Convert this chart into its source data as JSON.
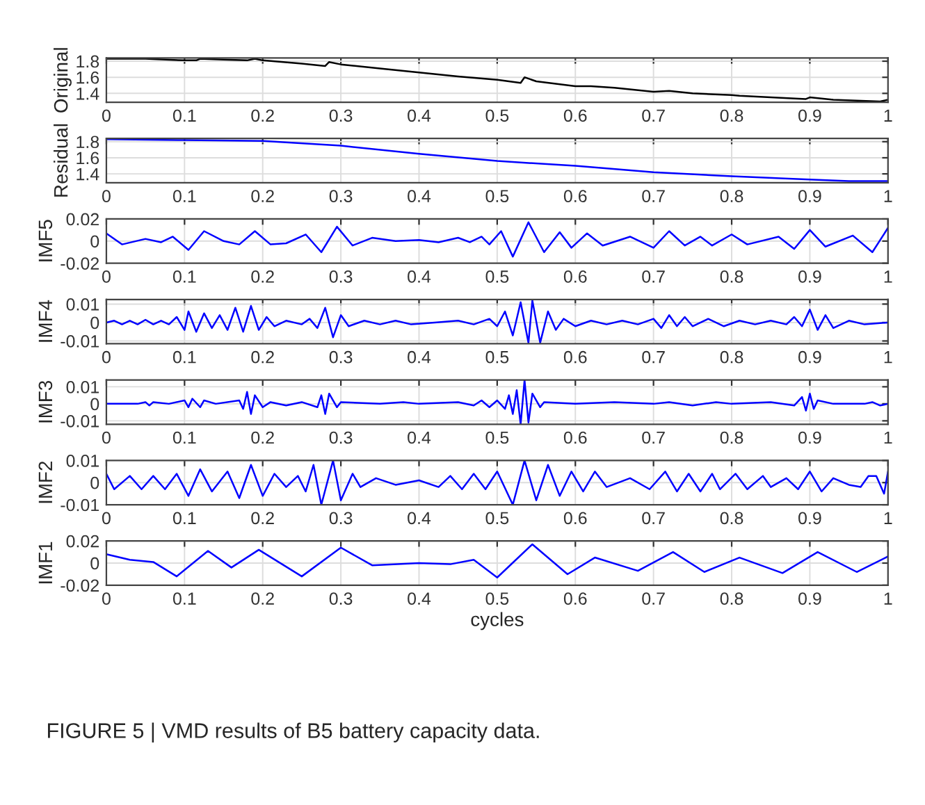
{
  "chart_data": [
    {
      "type": "line",
      "ylabel": "Original",
      "xlim": [
        0,
        1
      ],
      "xticks": [
        0,
        0.1,
        0.2,
        0.3,
        0.4,
        0.5,
        0.6,
        0.7,
        0.8,
        0.9,
        1
      ],
      "ylim": [
        1.29,
        1.84
      ],
      "yticks": [
        1.4,
        1.6,
        1.8
      ],
      "grid": true,
      "series": [
        {
          "color": "#000000",
          "x": [
            0,
            0.05,
            0.1,
            0.115,
            0.12,
            0.15,
            0.18,
            0.19,
            0.2,
            0.25,
            0.28,
            0.285,
            0.3,
            0.35,
            0.4,
            0.45,
            0.5,
            0.53,
            0.535,
            0.55,
            0.6,
            0.62,
            0.65,
            0.7,
            0.72,
            0.75,
            0.8,
            0.81,
            0.85,
            0.895,
            0.9,
            0.93,
            0.99,
            1.0
          ],
          "values": [
            1.83,
            1.83,
            1.81,
            1.81,
            1.83,
            1.82,
            1.81,
            1.83,
            1.81,
            1.77,
            1.74,
            1.79,
            1.76,
            1.71,
            1.66,
            1.61,
            1.57,
            1.53,
            1.6,
            1.55,
            1.49,
            1.49,
            1.47,
            1.42,
            1.43,
            1.4,
            1.38,
            1.37,
            1.35,
            1.33,
            1.35,
            1.32,
            1.3,
            1.32
          ]
        }
      ]
    },
    {
      "type": "line",
      "ylabel": "Residual",
      "xlim": [
        0,
        1
      ],
      "xticks": [
        0,
        0.1,
        0.2,
        0.3,
        0.4,
        0.5,
        0.6,
        0.7,
        0.8,
        0.9,
        1
      ],
      "ylim": [
        1.29,
        1.84
      ],
      "yticks": [
        1.4,
        1.6,
        1.8
      ],
      "grid": true,
      "series": [
        {
          "color": "#0000ff",
          "x": [
            0,
            0.1,
            0.2,
            0.3,
            0.4,
            0.5,
            0.6,
            0.7,
            0.8,
            0.9,
            0.95,
            1.0
          ],
          "values": [
            1.83,
            1.82,
            1.81,
            1.75,
            1.65,
            1.56,
            1.5,
            1.42,
            1.37,
            1.33,
            1.31,
            1.31
          ]
        }
      ]
    },
    {
      "type": "line",
      "ylabel": "IMF5",
      "xlim": [
        0,
        1
      ],
      "xticks": [
        0,
        0.1,
        0.2,
        0.3,
        0.4,
        0.5,
        0.6,
        0.7,
        0.8,
        0.9,
        1
      ],
      "ylim": [
        -0.02,
        0.02
      ],
      "yticks": [
        -0.02,
        0,
        0.02
      ],
      "grid": true,
      "series": [
        {
          "color": "#0000ff",
          "x": [
            0,
            0.02,
            0.05,
            0.07,
            0.085,
            0.105,
            0.125,
            0.15,
            0.17,
            0.19,
            0.21,
            0.23,
            0.255,
            0.275,
            0.295,
            0.315,
            0.34,
            0.37,
            0.4,
            0.425,
            0.45,
            0.465,
            0.48,
            0.49,
            0.505,
            0.52,
            0.54,
            0.56,
            0.58,
            0.595,
            0.615,
            0.635,
            0.67,
            0.7,
            0.72,
            0.74,
            0.76,
            0.775,
            0.8,
            0.82,
            0.86,
            0.88,
            0.9,
            0.92,
            0.955,
            0.98,
            1.0
          ],
          "values": [
            0.007,
            -0.003,
            0.002,
            -0.001,
            0.004,
            -0.008,
            0.009,
            0.0,
            -0.003,
            0.009,
            -0.003,
            -0.002,
            0.006,
            -0.01,
            0.013,
            -0.004,
            0.003,
            0.0,
            0.001,
            -0.001,
            0.003,
            -0.001,
            0.004,
            -0.003,
            0.009,
            -0.014,
            0.017,
            -0.01,
            0.008,
            -0.006,
            0.007,
            -0.004,
            0.004,
            -0.006,
            0.009,
            -0.004,
            0.004,
            -0.004,
            0.006,
            -0.003,
            0.004,
            -0.007,
            0.01,
            -0.005,
            0.005,
            -0.01,
            0.012
          ]
        }
      ]
    },
    {
      "type": "line",
      "ylabel": "IMF4",
      "xlim": [
        0,
        1
      ],
      "xticks": [
        0,
        0.1,
        0.2,
        0.3,
        0.4,
        0.5,
        0.6,
        0.7,
        0.8,
        0.9,
        1
      ],
      "ylim": [
        -0.0115,
        0.0125
      ],
      "yticks": [
        -0.01,
        0,
        0.01
      ],
      "grid": true,
      "series": [
        {
          "color": "#0000ff",
          "x": [
            0,
            0.01,
            0.02,
            0.03,
            0.04,
            0.05,
            0.06,
            0.07,
            0.08,
            0.09,
            0.1,
            0.105,
            0.115,
            0.125,
            0.135,
            0.145,
            0.155,
            0.165,
            0.175,
            0.185,
            0.195,
            0.205,
            0.215,
            0.23,
            0.25,
            0.26,
            0.27,
            0.28,
            0.29,
            0.3,
            0.31,
            0.33,
            0.35,
            0.37,
            0.39,
            0.42,
            0.45,
            0.47,
            0.49,
            0.5,
            0.51,
            0.52,
            0.53,
            0.54,
            0.545,
            0.555,
            0.565,
            0.575,
            0.585,
            0.6,
            0.62,
            0.64,
            0.66,
            0.68,
            0.7,
            0.71,
            0.72,
            0.73,
            0.74,
            0.75,
            0.77,
            0.79,
            0.81,
            0.83,
            0.85,
            0.87,
            0.88,
            0.89,
            0.9,
            0.91,
            0.92,
            0.93,
            0.95,
            0.97,
            1.0
          ],
          "values": [
            0,
            0.001,
            -0.001,
            0.001,
            -0.001,
            0.0015,
            -0.001,
            0.001,
            -0.001,
            0.003,
            -0.004,
            0.006,
            -0.005,
            0.005,
            -0.003,
            0.004,
            -0.004,
            0.008,
            -0.005,
            0.009,
            -0.004,
            0.003,
            -0.002,
            0.001,
            -0.001,
            0.002,
            -0.003,
            0.008,
            -0.008,
            0.004,
            -0.002,
            0.001,
            -0.001,
            0.001,
            -0.001,
            0.0,
            0.001,
            -0.001,
            0.002,
            -0.002,
            0.006,
            -0.007,
            0.011,
            -0.011,
            0.012,
            -0.011,
            0.006,
            -0.004,
            0.002,
            -0.002,
            0.001,
            -0.001,
            0.001,
            -0.001,
            0.002,
            -0.003,
            0.004,
            -0.002,
            0.003,
            -0.002,
            0.002,
            -0.002,
            0.001,
            -0.001,
            0.001,
            -0.001,
            0.003,
            -0.002,
            0.007,
            -0.004,
            0.004,
            -0.003,
            0.001,
            -0.001,
            0.0
          ]
        }
      ]
    },
    {
      "type": "line",
      "ylabel": "IMF3",
      "xlim": [
        0,
        1
      ],
      "xticks": [
        0,
        0.1,
        0.2,
        0.3,
        0.4,
        0.5,
        0.6,
        0.7,
        0.8,
        0.9,
        1
      ],
      "ylim": [
        -0.012,
        0.014
      ],
      "yticks": [
        -0.01,
        0,
        0.01
      ],
      "grid": true,
      "series": [
        {
          "color": "#0000ff",
          "x": [
            0,
            0.04,
            0.05,
            0.055,
            0.06,
            0.08,
            0.1,
            0.105,
            0.11,
            0.12,
            0.125,
            0.14,
            0.17,
            0.175,
            0.18,
            0.185,
            0.19,
            0.2,
            0.21,
            0.23,
            0.25,
            0.27,
            0.275,
            0.28,
            0.285,
            0.295,
            0.3,
            0.35,
            0.38,
            0.4,
            0.45,
            0.47,
            0.48,
            0.49,
            0.5,
            0.51,
            0.515,
            0.52,
            0.525,
            0.53,
            0.535,
            0.54,
            0.545,
            0.555,
            0.56,
            0.6,
            0.65,
            0.7,
            0.72,
            0.75,
            0.78,
            0.8,
            0.85,
            0.88,
            0.89,
            0.895,
            0.9,
            0.905,
            0.91,
            0.93,
            0.97,
            0.98,
            0.99,
            1.0
          ],
          "values": [
            0,
            0,
            0.001,
            -0.001,
            0.001,
            0,
            0.002,
            -0.002,
            0.003,
            -0.002,
            0.002,
            0,
            0.002,
            -0.003,
            0.007,
            -0.006,
            0.005,
            -0.002,
            0.001,
            -0.001,
            0.001,
            -0.002,
            0.005,
            -0.006,
            0.006,
            -0.002,
            0.001,
            0,
            0.001,
            0,
            0.001,
            -0.001,
            0.002,
            -0.002,
            0.002,
            -0.003,
            0.005,
            -0.006,
            0.008,
            -0.012,
            0.014,
            -0.011,
            0.006,
            -0.002,
            0.001,
            0,
            0.001,
            0,
            0.001,
            -0.001,
            0.001,
            0,
            0.001,
            -0.001,
            0.004,
            -0.004,
            0.006,
            -0.003,
            0.002,
            0,
            0,
            0.001,
            -0.001,
            0
          ]
        }
      ]
    },
    {
      "type": "line",
      "ylabel": "IMF2",
      "xlim": [
        0,
        1
      ],
      "xticks": [
        0,
        0.1,
        0.2,
        0.3,
        0.4,
        0.5,
        0.6,
        0.7,
        0.8,
        0.9,
        1
      ],
      "ylim": [
        -0.01,
        0.01
      ],
      "yticks": [
        -0.01,
        0,
        0.01
      ],
      "grid": true,
      "series": [
        {
          "color": "#0000ff",
          "x": [
            0,
            0.01,
            0.03,
            0.045,
            0.06,
            0.075,
            0.09,
            0.105,
            0.12,
            0.135,
            0.155,
            0.17,
            0.185,
            0.2,
            0.215,
            0.23,
            0.245,
            0.255,
            0.265,
            0.275,
            0.29,
            0.3,
            0.315,
            0.325,
            0.345,
            0.37,
            0.4,
            0.425,
            0.44,
            0.455,
            0.47,
            0.485,
            0.5,
            0.52,
            0.535,
            0.55,
            0.565,
            0.58,
            0.595,
            0.61,
            0.625,
            0.64,
            0.67,
            0.695,
            0.715,
            0.73,
            0.745,
            0.76,
            0.775,
            0.785,
            0.805,
            0.82,
            0.84,
            0.85,
            0.87,
            0.885,
            0.9,
            0.915,
            0.93,
            0.95,
            0.965,
            0.975,
            0.985,
            0.995,
            1.0
          ],
          "values": [
            0.004,
            -0.003,
            0.003,
            -0.003,
            0.003,
            -0.003,
            0.004,
            -0.006,
            0.006,
            -0.004,
            0.005,
            -0.007,
            0.008,
            -0.006,
            0.004,
            -0.002,
            0.003,
            -0.004,
            0.008,
            -0.01,
            0.01,
            -0.008,
            0.004,
            -0.002,
            0.002,
            -0.001,
            0.001,
            -0.002,
            0.003,
            -0.003,
            0.004,
            -0.003,
            0.005,
            -0.01,
            0.01,
            -0.008,
            0.008,
            -0.006,
            0.005,
            -0.004,
            0.005,
            -0.002,
            0.002,
            -0.003,
            0.005,
            -0.004,
            0.004,
            -0.004,
            0.004,
            -0.003,
            0.004,
            -0.003,
            0.003,
            -0.002,
            0.002,
            -0.003,
            0.005,
            -0.004,
            0.002,
            -0.001,
            -0.002,
            0.003,
            0.003,
            -0.005,
            0.005
          ]
        }
      ]
    },
    {
      "type": "line",
      "ylabel": "IMF1",
      "xlabel": "cycles",
      "xlim": [
        0,
        1
      ],
      "xticks": [
        0,
        0.1,
        0.2,
        0.3,
        0.4,
        0.5,
        0.6,
        0.7,
        0.8,
        0.9,
        1
      ],
      "ylim": [
        -0.02,
        0.02
      ],
      "yticks": [
        -0.02,
        0,
        0.02
      ],
      "grid": true,
      "annotations": [
        "FIGURE 5 | VMD results of B5 battery capacity data."
      ],
      "series": [
        {
          "color": "#0000ff",
          "x": [
            0,
            0.03,
            0.06,
            0.09,
            0.13,
            0.16,
            0.195,
            0.25,
            0.3,
            0.34,
            0.4,
            0.44,
            0.47,
            0.5,
            0.545,
            0.59,
            0.625,
            0.68,
            0.725,
            0.765,
            0.81,
            0.865,
            0.91,
            0.96,
            1.0
          ],
          "values": [
            0.008,
            0.003,
            0.001,
            -0.012,
            0.011,
            -0.004,
            0.012,
            -0.012,
            0.014,
            -0.002,
            0.0,
            -0.001,
            0.003,
            -0.013,
            0.017,
            -0.01,
            0.005,
            -0.007,
            0.01,
            -0.008,
            0.005,
            -0.009,
            0.01,
            -0.008,
            0.006
          ]
        }
      ]
    }
  ]
}
